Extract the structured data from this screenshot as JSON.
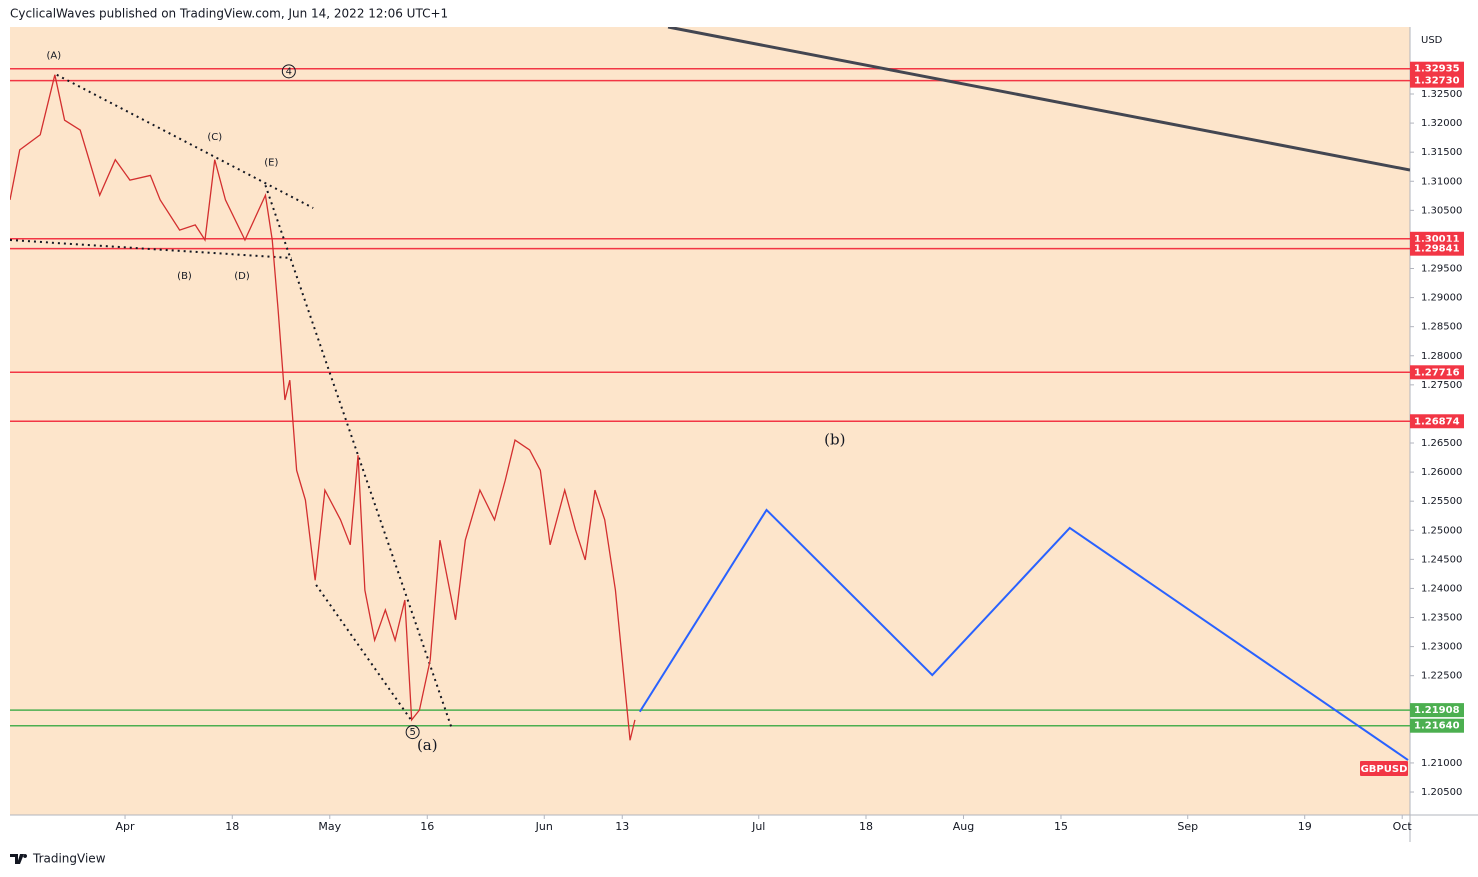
{
  "chart_data": {
    "type": "line",
    "title": "CyclicalWaves published on TradingView.com, Jun 14, 2022 12:06 UTC+1",
    "y_axis_label": "USD",
    "footer": "TradingView",
    "xlim": [
      -11.8,
      131.8
    ],
    "ylim": [
      1.20105,
      1.33652
    ],
    "xticks": [
      {
        "value": 0,
        "label": "Apr"
      },
      {
        "value": 11,
        "label": "18"
      },
      {
        "value": 21,
        "label": "May"
      },
      {
        "value": 31,
        "label": "16"
      },
      {
        "value": 43,
        "label": "Jun"
      },
      {
        "value": 51,
        "label": "13"
      },
      {
        "value": 65,
        "label": "Jul"
      },
      {
        "value": 76,
        "label": "18"
      },
      {
        "value": 86,
        "label": "Aug"
      },
      {
        "value": 96,
        "label": "15"
      },
      {
        "value": 109,
        "label": "Sep"
      },
      {
        "value": 121,
        "label": "19"
      },
      {
        "value": 131,
        "label": "Oct"
      }
    ],
    "yticks": [
      {
        "value": 1.325,
        "label": "1.32500"
      },
      {
        "value": 1.32,
        "label": "1.32000"
      },
      {
        "value": 1.315,
        "label": "1.31500"
      },
      {
        "value": 1.31,
        "label": "1.31000"
      },
      {
        "value": 1.305,
        "label": "1.30500"
      },
      {
        "value": 1.295,
        "label": "1.29500"
      },
      {
        "value": 1.29,
        "label": "1.29000"
      },
      {
        "value": 1.285,
        "label": "1.28500"
      },
      {
        "value": 1.28,
        "label": "1.28000"
      },
      {
        "value": 1.275,
        "label": "1.27500"
      },
      {
        "value": 1.265,
        "label": "1.26500"
      },
      {
        "value": 1.26,
        "label": "1.26000"
      },
      {
        "value": 1.255,
        "label": "1.25500"
      },
      {
        "value": 1.25,
        "label": "1.25000"
      },
      {
        "value": 1.245,
        "label": "1.24500"
      },
      {
        "value": 1.24,
        "label": "1.24000"
      },
      {
        "value": 1.235,
        "label": "1.23500"
      },
      {
        "value": 1.23,
        "label": "1.23000"
      },
      {
        "value": 1.225,
        "label": "1.22500"
      },
      {
        "value": 1.21,
        "label": "1.21000"
      },
      {
        "value": 1.205,
        "label": "1.20500"
      }
    ],
    "series": [
      {
        "name": "GBPUSD",
        "color": "#d32f2f",
        "x": [
          -11.8,
          -10.8,
          -8.7,
          -7.2,
          -6.2,
          -4.6,
          -2.6,
          -1,
          0.5,
          2.6,
          3.6,
          5.6,
          7.2,
          8.2,
          9.2,
          10.3,
          12.3,
          14.4,
          15.1,
          15.7,
          16.4,
          16.9,
          17.6,
          18.5,
          19.5,
          20.5,
          22.1,
          23.1,
          23.9,
          24.6,
          25.6,
          26.7,
          27.7,
          28.7,
          29.4,
          30.2,
          31.3,
          32.3,
          33.9,
          34.9,
          36.4,
          37.9,
          39,
          40,
          41.5,
          42.6,
          43.6,
          45.1,
          46.2,
          47.2,
          48.2,
          49.2,
          50.3,
          51,
          51.8,
          52.3
        ],
        "values": [
          1.3068,
          1.3154,
          1.318,
          1.3283,
          1.3205,
          1.3188,
          1.3076,
          1.3137,
          1.3102,
          1.311,
          1.3068,
          1.3016,
          1.3025,
          1.2999,
          1.3137,
          1.3068,
          1.2999,
          1.3076,
          1.2999,
          1.2879,
          1.2724,
          1.2758,
          1.2603,
          1.2552,
          1.2414,
          1.2569,
          1.2518,
          1.2475,
          1.2629,
          1.2397,
          1.2311,
          1.2363,
          1.2311,
          1.238,
          1.2174,
          1.2191,
          1.2277,
          1.2483,
          1.2346,
          1.2483,
          1.2569,
          1.2518,
          1.2586,
          1.2655,
          1.2638,
          1.2603,
          1.2475,
          1.2569,
          1.2501,
          1.2449,
          1.2569,
          1.2518,
          1.2397,
          1.2277,
          1.2139,
          1.2174
        ]
      }
    ],
    "levels": [
      {
        "value": 1.32935,
        "color": "#f23645"
      },
      {
        "value": 1.3273,
        "label": "1.32730",
        "color": "#f23645"
      },
      {
        "value": 1.30011,
        "color": "#f23645"
      },
      {
        "value": 1.29841,
        "color": "#f23645"
      },
      {
        "value": 1.27716,
        "color": "#f23645"
      },
      {
        "value": 1.26874,
        "color": "#f23645"
      },
      {
        "value": 1.21908,
        "color": "#4caf50"
      },
      {
        "value": 1.2164,
        "label": "1.21640",
        "color": "#4caf50"
      }
    ],
    "lines": [
      {
        "x": [
          55.7,
          131.8
        ],
        "values": [
          1.33652,
          1.31193
        ],
        "color": "#434651",
        "style": "solid"
      },
      {
        "x": [
          -7.0,
          19.3
        ],
        "values": [
          1.3283,
          1.3054
        ],
        "color": "#131722",
        "style": "dotted"
      },
      {
        "x": [
          -11.8,
          17.1
        ],
        "values": [
          1.2999,
          1.2968
        ],
        "color": "#131722",
        "style": "dotted"
      },
      {
        "x": [
          14.4,
          33.5
        ],
        "values": [
          1.3093,
          1.216
        ],
        "color": "#131722",
        "style": "dotted"
      },
      {
        "x": [
          19.6,
          29.5
        ],
        "values": [
          1.2406,
          1.217
        ],
        "color": "#131722",
        "style": "dotted"
      }
    ],
    "projection": {
      "color": "#2962ff",
      "x": [
        52.8,
        65.8,
        82.8,
        96.9,
        131.6
      ],
      "values": [
        1.2188,
        1.2535,
        1.2251,
        1.2504,
        1.2105
      ]
    },
    "annotations": [
      {
        "text": "(A)",
        "x": -7.3,
        "y": 1.3316
      },
      {
        "text": "(C)",
        "x": 9.2,
        "y": 1.3176
      },
      {
        "text": "(E)",
        "x": 15.0,
        "y": 1.3132
      },
      {
        "text": "(B)",
        "x": 6.1,
        "y": 1.2937
      },
      {
        "text": "(D)",
        "x": 12.0,
        "y": 1.2937
      },
      {
        "text": "4",
        "x": 16.8,
        "y": 1.3289,
        "circled": true
      },
      {
        "text": "5",
        "x": 29.5,
        "y": 1.2153,
        "circled": true
      },
      {
        "text": "(a)",
        "x": 31.0,
        "y": 1.2129,
        "large": true
      },
      {
        "text": "(b)",
        "x": 72.8,
        "y": 1.2654,
        "large": true
      }
    ]
  }
}
